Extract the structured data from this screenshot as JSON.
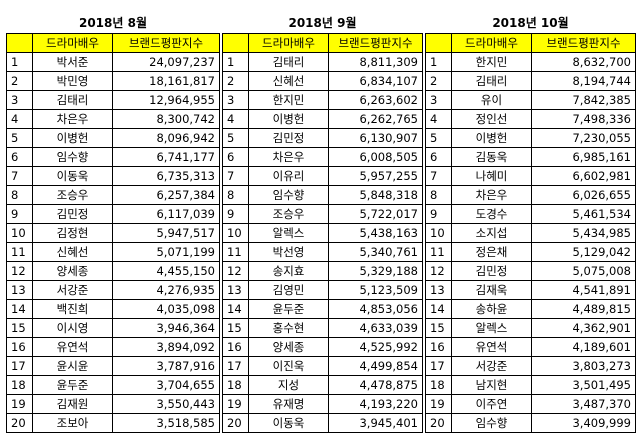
{
  "headers": {
    "actor": "드라마배우",
    "index": "브랜드평판지수"
  },
  "panels": [
    {
      "title": "2018년 8월",
      "rows": [
        [
          "1",
          "박서준",
          "24,097,237"
        ],
        [
          "2",
          "박민영",
          "18,161,817"
        ],
        [
          "3",
          "김태리",
          "12,964,955"
        ],
        [
          "4",
          "차은우",
          "8,300,742"
        ],
        [
          "5",
          "이병헌",
          "8,096,942"
        ],
        [
          "6",
          "임수향",
          "6,741,177"
        ],
        [
          "7",
          "이동욱",
          "6,735,313"
        ],
        [
          "8",
          "조승우",
          "6,257,384"
        ],
        [
          "9",
          "김민정",
          "6,117,039"
        ],
        [
          "10",
          "김정현",
          "5,947,517"
        ],
        [
          "11",
          "신혜선",
          "5,071,199"
        ],
        [
          "12",
          "양세종",
          "4,455,150"
        ],
        [
          "13",
          "서강준",
          "4,276,935"
        ],
        [
          "14",
          "백진희",
          "4,035,098"
        ],
        [
          "15",
          "이시영",
          "3,946,364"
        ],
        [
          "16",
          "유연석",
          "3,894,092"
        ],
        [
          "17",
          "윤시윤",
          "3,787,916"
        ],
        [
          "18",
          "윤두준",
          "3,704,655"
        ],
        [
          "19",
          "김재원",
          "3,550,443"
        ],
        [
          "20",
          "조보아",
          "3,518,585"
        ]
      ]
    },
    {
      "title": "2018년 9월",
      "rows": [
        [
          "1",
          "김태리",
          "8,811,309"
        ],
        [
          "2",
          "신혜선",
          "6,834,107"
        ],
        [
          "3",
          "한지민",
          "6,263,602"
        ],
        [
          "4",
          "이병헌",
          "6,262,765"
        ],
        [
          "5",
          "김민정",
          "6,130,907"
        ],
        [
          "6",
          "차은우",
          "6,008,505"
        ],
        [
          "7",
          "이유리",
          "5,957,255"
        ],
        [
          "8",
          "임수향",
          "5,848,318"
        ],
        [
          "9",
          "조승우",
          "5,722,017"
        ],
        [
          "10",
          "알렉스",
          "5,438,163"
        ],
        [
          "11",
          "박선영",
          "5,340,761"
        ],
        [
          "12",
          "송지효",
          "5,329,188"
        ],
        [
          "13",
          "김영민",
          "5,123,509"
        ],
        [
          "14",
          "윤두준",
          "4,853,056"
        ],
        [
          "15",
          "홍수현",
          "4,633,039"
        ],
        [
          "16",
          "양세종",
          "4,525,992"
        ],
        [
          "17",
          "이진욱",
          "4,499,854"
        ],
        [
          "18",
          "지성",
          "4,478,875"
        ],
        [
          "19",
          "유재명",
          "4,193,220"
        ],
        [
          "20",
          "이동욱",
          "3,945,401"
        ]
      ]
    },
    {
      "title": "2018년 10월",
      "rows": [
        [
          "1",
          "한지민",
          "8,632,700"
        ],
        [
          "2",
          "김태리",
          "8,194,744"
        ],
        [
          "3",
          "유이",
          "7,842,385"
        ],
        [
          "4",
          "정인선",
          "7,498,336"
        ],
        [
          "5",
          "이병헌",
          "7,230,055"
        ],
        [
          "6",
          "김동욱",
          "6,985,161"
        ],
        [
          "7",
          "나혜미",
          "6,602,981"
        ],
        [
          "8",
          "차은우",
          "6,026,655"
        ],
        [
          "9",
          "도경수",
          "5,461,534"
        ],
        [
          "10",
          "소지섭",
          "5,434,985"
        ],
        [
          "11",
          "정은채",
          "5,129,042"
        ],
        [
          "12",
          "김민정",
          "5,075,008"
        ],
        [
          "13",
          "김재욱",
          "4,541,891"
        ],
        [
          "14",
          "송하윤",
          "4,489,815"
        ],
        [
          "15",
          "알렉스",
          "4,362,901"
        ],
        [
          "16",
          "유연석",
          "4,189,601"
        ],
        [
          "17",
          "서강준",
          "3,803,273"
        ],
        [
          "18",
          "남지현",
          "3,501,495"
        ],
        [
          "19",
          "이주연",
          "3,487,370"
        ],
        [
          "20",
          "임수향",
          "3,409,999"
        ]
      ]
    }
  ]
}
